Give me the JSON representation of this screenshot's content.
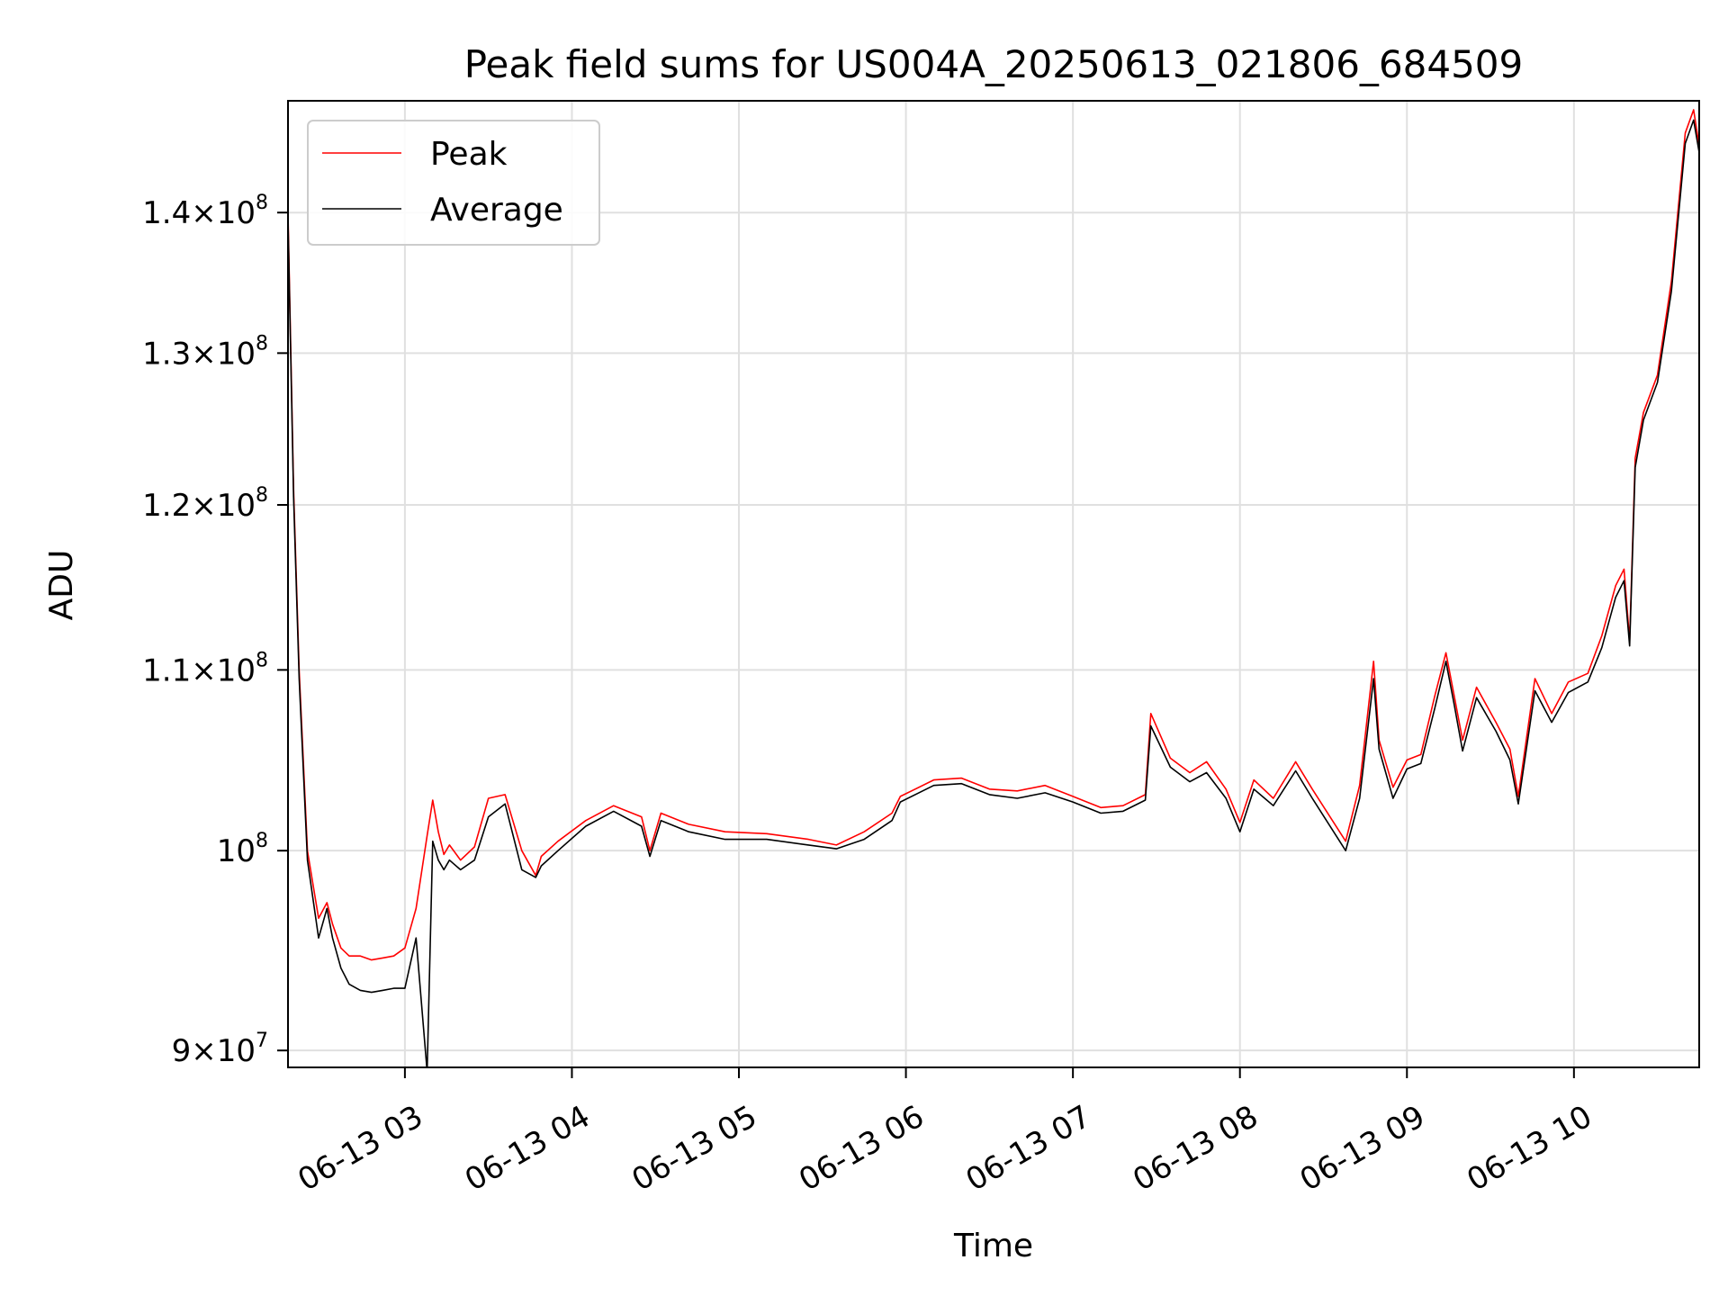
{
  "chart_data": {
    "type": "line",
    "title": "Peak field sums for US004A_20250613_021806_684509",
    "xlabel": "Time",
    "ylabel": "ADU",
    "yscale": "log",
    "grid": true,
    "legend_position": "upper-left",
    "xlim": [
      "2025-06-13 02:18",
      "2025-06-13 10:45"
    ],
    "ylim": [
      89200000,
      148500000
    ],
    "x_ticks": [
      {
        "value": "2025-06-13 03:00",
        "label": "06-13 03"
      },
      {
        "value": "2025-06-13 04:00",
        "label": "06-13 04"
      },
      {
        "value": "2025-06-13 05:00",
        "label": "06-13 05"
      },
      {
        "value": "2025-06-13 06:00",
        "label": "06-13 06"
      },
      {
        "value": "2025-06-13 07:00",
        "label": "06-13 07"
      },
      {
        "value": "2025-06-13 08:00",
        "label": "06-13 08"
      },
      {
        "value": "2025-06-13 09:00",
        "label": "06-13 09"
      },
      {
        "value": "2025-06-13 10:00",
        "label": "06-13 10"
      }
    ],
    "y_ticks": [
      {
        "value": 90000000,
        "mantissa": "9",
        "exponent": "7"
      },
      {
        "value": 100000000,
        "mantissa": "",
        "exponent": "8"
      },
      {
        "value": 110000000,
        "mantissa": "1.1",
        "exponent": "8"
      },
      {
        "value": 120000000,
        "mantissa": "1.2",
        "exponent": "8"
      },
      {
        "value": 130000000,
        "mantissa": "1.3",
        "exponent": "8"
      },
      {
        "value": 140000000,
        "mantissa": "1.4",
        "exponent": "8"
      }
    ],
    "series": [
      {
        "name": "Peak",
        "color": "#ff0000",
        "x": [
          "2025-06-13 02:18",
          "2025-06-13 02:20",
          "2025-06-13 02:22",
          "2025-06-13 02:25",
          "2025-06-13 02:29",
          "2025-06-13 02:32",
          "2025-06-13 02:34",
          "2025-06-13 02:37",
          "2025-06-13 02:40",
          "2025-06-13 02:44",
          "2025-06-13 02:48",
          "2025-06-13 02:52",
          "2025-06-13 02:56",
          "2025-06-13 03:00",
          "2025-06-13 03:04",
          "2025-06-13 03:08",
          "2025-06-13 03:10",
          "2025-06-13 03:12",
          "2025-06-13 03:14",
          "2025-06-13 03:16",
          "2025-06-13 03:20",
          "2025-06-13 03:25",
          "2025-06-13 03:30",
          "2025-06-13 03:36",
          "2025-06-13 03:42",
          "2025-06-13 03:47",
          "2025-06-13 03:49",
          "2025-06-13 03:55",
          "2025-06-13 04:05",
          "2025-06-13 04:15",
          "2025-06-13 04:25",
          "2025-06-13 04:28",
          "2025-06-13 04:32",
          "2025-06-13 04:42",
          "2025-06-13 04:55",
          "2025-06-13 05:10",
          "2025-06-13 05:25",
          "2025-06-13 05:35",
          "2025-06-13 05:45",
          "2025-06-13 05:55",
          "2025-06-13 05:58",
          "2025-06-13 06:10",
          "2025-06-13 06:20",
          "2025-06-13 06:30",
          "2025-06-13 06:40",
          "2025-06-13 06:50",
          "2025-06-13 07:00",
          "2025-06-13 07:10",
          "2025-06-13 07:18",
          "2025-06-13 07:26",
          "2025-06-13 07:28",
          "2025-06-13 07:35",
          "2025-06-13 07:42",
          "2025-06-13 07:48",
          "2025-06-13 07:55",
          "2025-06-13 08:00",
          "2025-06-13 08:05",
          "2025-06-13 08:12",
          "2025-06-13 08:20",
          "2025-06-13 08:26",
          "2025-06-13 08:38",
          "2025-06-13 08:43",
          "2025-06-13 08:48",
          "2025-06-13 08:50",
          "2025-06-13 08:55",
          "2025-06-13 09:00",
          "2025-06-13 09:05",
          "2025-06-13 09:10",
          "2025-06-13 09:14",
          "2025-06-13 09:17",
          "2025-06-13 09:20",
          "2025-06-13 09:25",
          "2025-06-13 09:32",
          "2025-06-13 09:37",
          "2025-06-13 09:40",
          "2025-06-13 09:46",
          "2025-06-13 09:52",
          "2025-06-13 09:58",
          "2025-06-13 10:05",
          "2025-06-13 10:10",
          "2025-06-13 10:15",
          "2025-06-13 10:18",
          "2025-06-13 10:20",
          "2025-06-13 10:22",
          "2025-06-13 10:25",
          "2025-06-13 10:30",
          "2025-06-13 10:35",
          "2025-06-13 10:40",
          "2025-06-13 10:43",
          "2025-06-13 10:45"
        ],
        "y": [
          140000000,
          121000000,
          110000000,
          100000000,
          96500000,
          97300000,
          96200000,
          95000000,
          94600000,
          94600000,
          94400000,
          94500000,
          94600000,
          95000000,
          97000000,
          100800000,
          102700000,
          101000000,
          99800000,
          100300000,
          99500000,
          100200000,
          102800000,
          103000000,
          100000000,
          98700000,
          99700000,
          100500000,
          101600000,
          102400000,
          101800000,
          100000000,
          102000000,
          101400000,
          101000000,
          100900000,
          100600000,
          100300000,
          101000000,
          102000000,
          102900000,
          103800000,
          103900000,
          103300000,
          103200000,
          103500000,
          102900000,
          102300000,
          102400000,
          103000000,
          107500000,
          105000000,
          104200000,
          104800000,
          103300000,
          101500000,
          103800000,
          102800000,
          104800000,
          103300000,
          100500000,
          103500000,
          110500000,
          106000000,
          103400000,
          104900000,
          105200000,
          108500000,
          111000000,
          108500000,
          106000000,
          109000000,
          107000000,
          105500000,
          102900000,
          109500000,
          107500000,
          109300000,
          109800000,
          112000000,
          115000000,
          116000000,
          111700000,
          123000000,
          126000000,
          128500000,
          135000000,
          146000000,
          147800000,
          145000000
        ]
      },
      {
        "name": "Average",
        "color": "#000000",
        "x": [
          "2025-06-13 02:18",
          "2025-06-13 02:20",
          "2025-06-13 02:22",
          "2025-06-13 02:25",
          "2025-06-13 02:29",
          "2025-06-13 02:32",
          "2025-06-13 02:34",
          "2025-06-13 02:37",
          "2025-06-13 02:40",
          "2025-06-13 02:44",
          "2025-06-13 02:48",
          "2025-06-13 02:52",
          "2025-06-13 02:56",
          "2025-06-13 03:00",
          "2025-06-13 03:04",
          "2025-06-13 03:08",
          "2025-06-13 03:10",
          "2025-06-13 03:12",
          "2025-06-13 03:14",
          "2025-06-13 03:16",
          "2025-06-13 03:20",
          "2025-06-13 03:25",
          "2025-06-13 03:30",
          "2025-06-13 03:36",
          "2025-06-13 03:42",
          "2025-06-13 03:47",
          "2025-06-13 03:49",
          "2025-06-13 03:55",
          "2025-06-13 04:05",
          "2025-06-13 04:15",
          "2025-06-13 04:25",
          "2025-06-13 04:28",
          "2025-06-13 04:32",
          "2025-06-13 04:42",
          "2025-06-13 04:55",
          "2025-06-13 05:10",
          "2025-06-13 05:25",
          "2025-06-13 05:35",
          "2025-06-13 05:45",
          "2025-06-13 05:55",
          "2025-06-13 05:58",
          "2025-06-13 06:10",
          "2025-06-13 06:20",
          "2025-06-13 06:30",
          "2025-06-13 06:40",
          "2025-06-13 06:50",
          "2025-06-13 07:00",
          "2025-06-13 07:10",
          "2025-06-13 07:18",
          "2025-06-13 07:26",
          "2025-06-13 07:28",
          "2025-06-13 07:35",
          "2025-06-13 07:42",
          "2025-06-13 07:48",
          "2025-06-13 07:55",
          "2025-06-13 08:00",
          "2025-06-13 08:05",
          "2025-06-13 08:12",
          "2025-06-13 08:20",
          "2025-06-13 08:26",
          "2025-06-13 08:38",
          "2025-06-13 08:43",
          "2025-06-13 08:48",
          "2025-06-13 08:50",
          "2025-06-13 08:55",
          "2025-06-13 09:00",
          "2025-06-13 09:05",
          "2025-06-13 09:10",
          "2025-06-13 09:14",
          "2025-06-13 09:17",
          "2025-06-13 09:20",
          "2025-06-13 09:25",
          "2025-06-13 09:32",
          "2025-06-13 09:37",
          "2025-06-13 09:40",
          "2025-06-13 09:46",
          "2025-06-13 09:52",
          "2025-06-13 09:58",
          "2025-06-13 10:05",
          "2025-06-13 10:10",
          "2025-06-13 10:15",
          "2025-06-13 10:18",
          "2025-06-13 10:20",
          "2025-06-13 10:22",
          "2025-06-13 10:25",
          "2025-06-13 10:30",
          "2025-06-13 10:35",
          "2025-06-13 10:40",
          "2025-06-13 10:43",
          "2025-06-13 10:45"
        ],
        "y": [
          139500000,
          120500000,
          109500000,
          99500000,
          95500000,
          97000000,
          95500000,
          94000000,
          93200000,
          92900000,
          92800000,
          92900000,
          93000000,
          93000000,
          95500000,
          89000000,
          100500000,
          99500000,
          99000000,
          99500000,
          99000000,
          99500000,
          101800000,
          102500000,
          99000000,
          98600000,
          99200000,
          100000000,
          101300000,
          102100000,
          101300000,
          99700000,
          101600000,
          101000000,
          100600000,
          100600000,
          100300000,
          100100000,
          100600000,
          101600000,
          102600000,
          103500000,
          103600000,
          103000000,
          102800000,
          103100000,
          102600000,
          102000000,
          102100000,
          102700000,
          106800000,
          104500000,
          103700000,
          104200000,
          102800000,
          101000000,
          103300000,
          102400000,
          104300000,
          102800000,
          100000000,
          102800000,
          109500000,
          105500000,
          102800000,
          104400000,
          104700000,
          107800000,
          110500000,
          108000000,
          105400000,
          108400000,
          106500000,
          104900000,
          102500000,
          108800000,
          107000000,
          108700000,
          109300000,
          111300000,
          114300000,
          115300000,
          111400000,
          122400000,
          125500000,
          128000000,
          134300000,
          145200000,
          147000000,
          144500000
        ]
      }
    ]
  }
}
